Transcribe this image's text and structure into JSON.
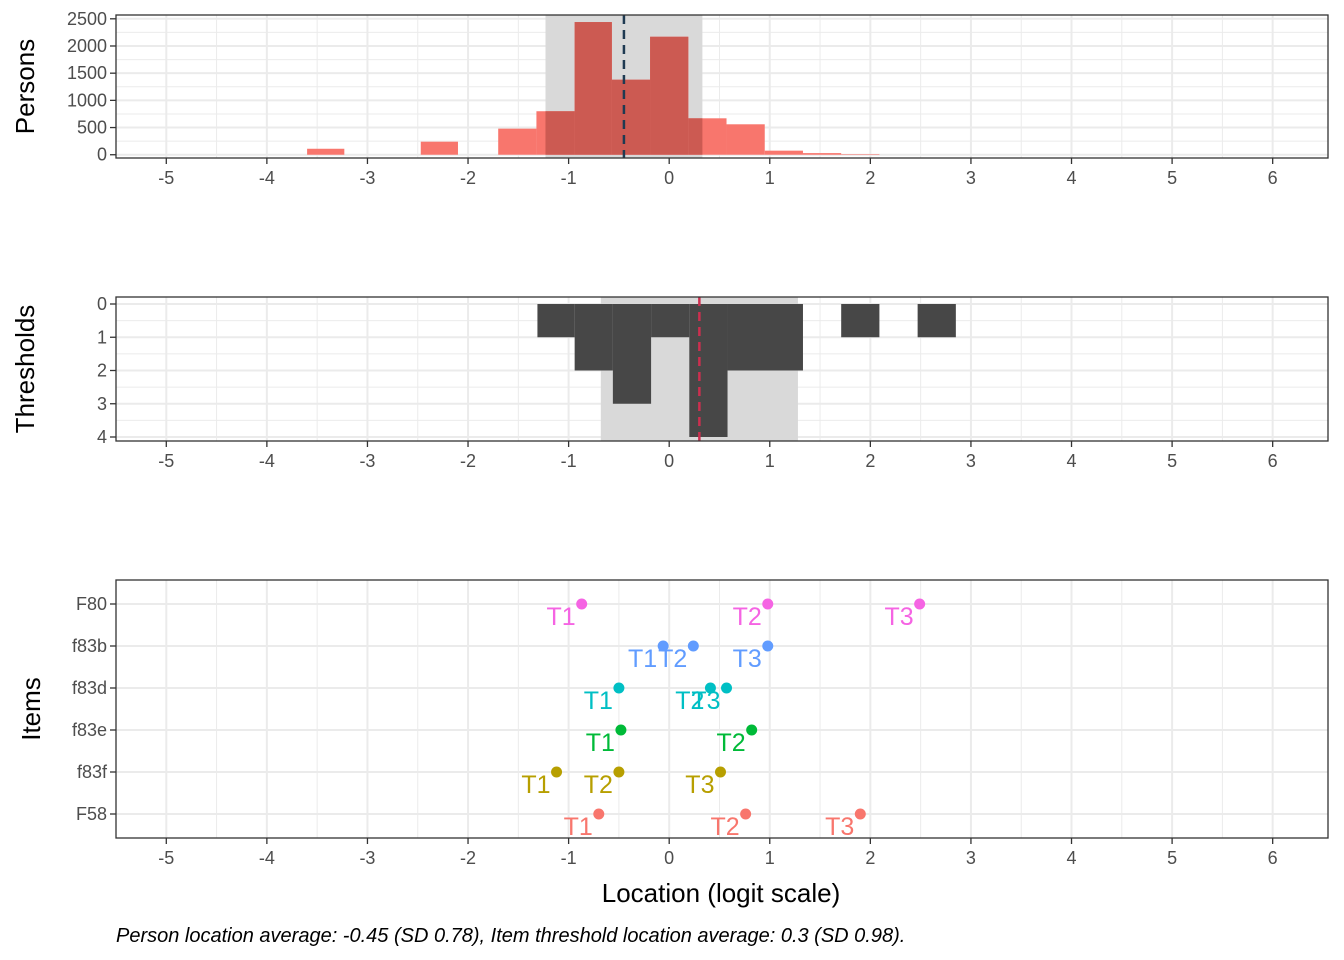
{
  "chart_data": [
    {
      "type": "bar",
      "panel": "persons",
      "ylabel": "Persons",
      "xlim": [
        -5.5,
        6.55
      ],
      "ylim": [
        -60,
        2570
      ],
      "y_ticks": [
        0,
        500,
        1000,
        1500,
        2000,
        2500
      ],
      "x_ticks": [
        -5,
        -4,
        -3,
        -2,
        -1,
        0,
        1,
        2,
        3,
        4,
        5,
        6
      ],
      "mean": -0.45,
      "sd": 0.78,
      "bins_back": [
        {
          "x0": -3.6,
          "x1": -3.23,
          "count": 110
        },
        {
          "x0": -2.47,
          "x1": -2.1,
          "count": 240
        },
        {
          "x0": -1.7,
          "x1": -1.32,
          "count": 480
        },
        {
          "x0": -1.32,
          "x1": -0.94,
          "count": 800
        },
        {
          "x0": -0.94,
          "x1": -0.57,
          "count": 2440
        },
        {
          "x0": -0.57,
          "x1": -0.19,
          "count": 1380
        },
        {
          "x0": -0.19,
          "x1": 0.19,
          "count": 2170
        },
        {
          "x0": 0.19,
          "x1": 0.57,
          "count": 670
        },
        {
          "x0": 0.57,
          "x1": 0.95,
          "count": 560
        },
        {
          "x0": 0.95,
          "x1": 1.33,
          "count": 75
        },
        {
          "x0": 1.33,
          "x1": 1.71,
          "count": 30
        },
        {
          "x0": 1.71,
          "x1": 2.09,
          "count": 10
        }
      ],
      "bins_front": [
        {
          "x0": -1.23,
          "x1": -0.94,
          "count": 800
        },
        {
          "x0": -0.94,
          "x1": -0.57,
          "count": 2440
        },
        {
          "x0": -0.57,
          "x1": -0.19,
          "count": 1380
        },
        {
          "x0": -0.19,
          "x1": 0.19,
          "count": 2170
        },
        {
          "x0": 0.19,
          "x1": 0.33,
          "count": 670
        }
      ]
    },
    {
      "type": "bar",
      "panel": "thresholds",
      "ylabel": "Thresholds",
      "xlim": [
        -5.5,
        6.55
      ],
      "y_ticks": [
        0,
        1,
        2,
        3,
        4
      ],
      "x_ticks": [
        -5,
        -4,
        -3,
        -2,
        -1,
        0,
        1,
        2,
        3,
        4,
        5,
        6
      ],
      "mean": 0.3,
      "sd": 0.98,
      "bins": [
        {
          "x0": -1.31,
          "x1": -0.94,
          "count": 1
        },
        {
          "x0": -0.94,
          "x1": -0.56,
          "count": 2
        },
        {
          "x0": -0.56,
          "x1": -0.18,
          "count": 3
        },
        {
          "x0": -0.18,
          "x1": 0.2,
          "count": 1
        },
        {
          "x0": 0.2,
          "x1": 0.58,
          "count": 4
        },
        {
          "x0": 0.58,
          "x1": 1.33,
          "count": 2
        },
        {
          "x0": 1.71,
          "x1": 2.09,
          "count": 1
        },
        {
          "x0": 2.47,
          "x1": 2.85,
          "count": 1
        }
      ]
    },
    {
      "type": "scatter",
      "panel": "items",
      "ylabel": "Items",
      "xlabel": "Location (logit scale)",
      "xlim": [
        -5.5,
        6.55
      ],
      "x_ticks": [
        -5,
        -4,
        -3,
        -2,
        -1,
        0,
        1,
        2,
        3,
        4,
        5,
        6
      ],
      "items": [
        "F58",
        "f83f",
        "f83e",
        "f83d",
        "f83b",
        "F80"
      ],
      "points": [
        {
          "item": "F58",
          "label": "T1",
          "x": -0.7,
          "color": "#F8766D"
        },
        {
          "item": "F58",
          "label": "T2",
          "x": 0.76,
          "color": "#F8766D"
        },
        {
          "item": "F58",
          "label": "T3",
          "x": 1.9,
          "color": "#F8766D"
        },
        {
          "item": "f83f",
          "label": "T1",
          "x": -1.12,
          "color": "#B79F00"
        },
        {
          "item": "f83f",
          "label": "T2",
          "x": -0.5,
          "color": "#B79F00"
        },
        {
          "item": "f83f",
          "label": "T3",
          "x": 0.51,
          "color": "#B79F00"
        },
        {
          "item": "f83e",
          "label": "T1",
          "x": -0.48,
          "color": "#00BA38"
        },
        {
          "item": "f83e",
          "label": "T2",
          "x": 0.82,
          "color": "#00BA38"
        },
        {
          "item": "f83d",
          "label": "T1",
          "x": -0.5,
          "color": "#00BFC4"
        },
        {
          "item": "f83d",
          "label": "T2",
          "x": 0.41,
          "color": "#00BFC4"
        },
        {
          "item": "f83d",
          "label": "T3",
          "x": 0.57,
          "color": "#00BFC4"
        },
        {
          "item": "f83b",
          "label": "T1",
          "x": -0.06,
          "color": "#619CFF"
        },
        {
          "item": "f83b",
          "label": "T2",
          "x": 0.24,
          "color": "#619CFF"
        },
        {
          "item": "f83b",
          "label": "T3",
          "x": 0.98,
          "color": "#619CFF"
        },
        {
          "item": "F80",
          "label": "T1",
          "x": -0.87,
          "color": "#F564E3"
        },
        {
          "item": "F80",
          "label": "T2",
          "x": 0.98,
          "color": "#F564E3"
        },
        {
          "item": "F80",
          "label": "T3",
          "x": 2.49,
          "color": "#F564E3"
        }
      ]
    }
  ],
  "caption": "Person location average: -0.45 (SD 0.78), Item threshold location average: 0.3 (SD 0.98).",
  "colors": {
    "person_bar": "#F8766D",
    "person_bar_dark": "#CC5A52",
    "threshold_bar": "#474747",
    "sd_band": "#d9d9d9",
    "person_mean_line": "#1F3A52",
    "threshold_mean_line": "#CC2F4F",
    "grid": "#ebebeb",
    "panel_border": "#333333"
  }
}
